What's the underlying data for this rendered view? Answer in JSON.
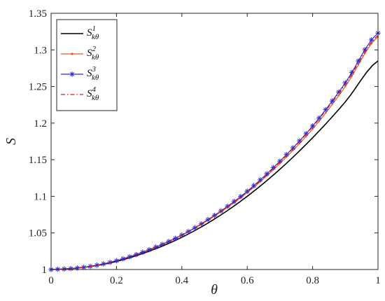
{
  "chart_data": {
    "type": "line",
    "xlabel": "θ",
    "ylabel": "S",
    "xlim": [
      0,
      1
    ],
    "ylim": [
      1,
      1.35
    ],
    "xticks": [
      0,
      0.2,
      0.4,
      0.6,
      0.8,
      1
    ],
    "xtick_labels": [
      "0",
      "0.2",
      "0.4",
      "0.6",
      "0.8",
      "1"
    ],
    "yticks": [
      1,
      1.05,
      1.1,
      1.15,
      1.2,
      1.25,
      1.3,
      1.35
    ],
    "ytick_labels": [
      "1",
      "1.05",
      "1.1",
      "1.15",
      "1.2",
      "1.25",
      "1.3",
      "1.35"
    ],
    "grid": false,
    "legend_position": "top-left",
    "x": [
      0,
      0.1,
      0.2,
      0.3,
      0.4,
      0.5,
      0.6,
      0.7,
      0.8,
      0.9,
      1.0
    ],
    "series": [
      {
        "name": "S",
        "name_sup": "1",
        "name_sub": "kθ",
        "color": "#000000",
        "style": "solid",
        "marker": "none",
        "values": [
          1.0,
          1.003,
          1.011,
          1.025,
          1.044,
          1.069,
          1.1,
          1.137,
          1.18,
          1.229,
          1.285
        ]
      },
      {
        "name": "S",
        "name_sup": "2",
        "name_sub": "kθ",
        "color": "#e8561e",
        "style": "solid",
        "marker": "dot",
        "values": [
          1.0,
          1.003,
          1.012,
          1.027,
          1.047,
          1.073,
          1.105,
          1.145,
          1.192,
          1.25,
          1.318
        ]
      },
      {
        "name": "S",
        "name_sup": "3",
        "name_sub": "kθ",
        "color": "#2a2ad4",
        "style": "solid",
        "marker": "star",
        "values": [
          1.0,
          1.003,
          1.012,
          1.027,
          1.047,
          1.074,
          1.107,
          1.148,
          1.196,
          1.255,
          1.323
        ]
      },
      {
        "name": "S",
        "name_sup": "4",
        "name_sub": "kθ",
        "color": "#e0101c",
        "style": "dashdot",
        "marker": "none",
        "values": [
          1.0,
          1.003,
          1.012,
          1.027,
          1.047,
          1.074,
          1.106,
          1.147,
          1.195,
          1.253,
          1.32
        ]
      }
    ]
  }
}
